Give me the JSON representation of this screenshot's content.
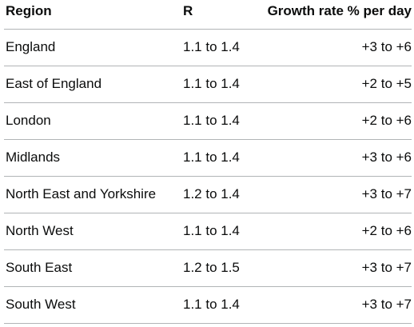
{
  "table": {
    "headers": {
      "region": "Region",
      "r": "R",
      "growth": "Growth rate % per day"
    },
    "rows": [
      {
        "region": "England",
        "r": "1.1 to 1.4",
        "growth": "+3 to +6"
      },
      {
        "region": "East of England",
        "r": "1.1 to 1.4",
        "growth": "+2 to +5"
      },
      {
        "region": "London",
        "r": "1.1 to 1.4",
        "growth": "+2 to +6"
      },
      {
        "region": "Midlands",
        "r": "1.1 to 1.4",
        "growth": "+3 to +6"
      },
      {
        "region": "North East and Yorkshire",
        "r": "1.2 to 1.4",
        "growth": "+3 to +7"
      },
      {
        "region": "North West",
        "r": "1.1 to 1.4",
        "growth": "+2 to +6"
      },
      {
        "region": "South East",
        "r": "1.2 to 1.5",
        "growth": "+3 to +7"
      },
      {
        "region": "South West",
        "r": "1.1 to 1.4",
        "growth": "+3 to +7"
      }
    ]
  }
}
